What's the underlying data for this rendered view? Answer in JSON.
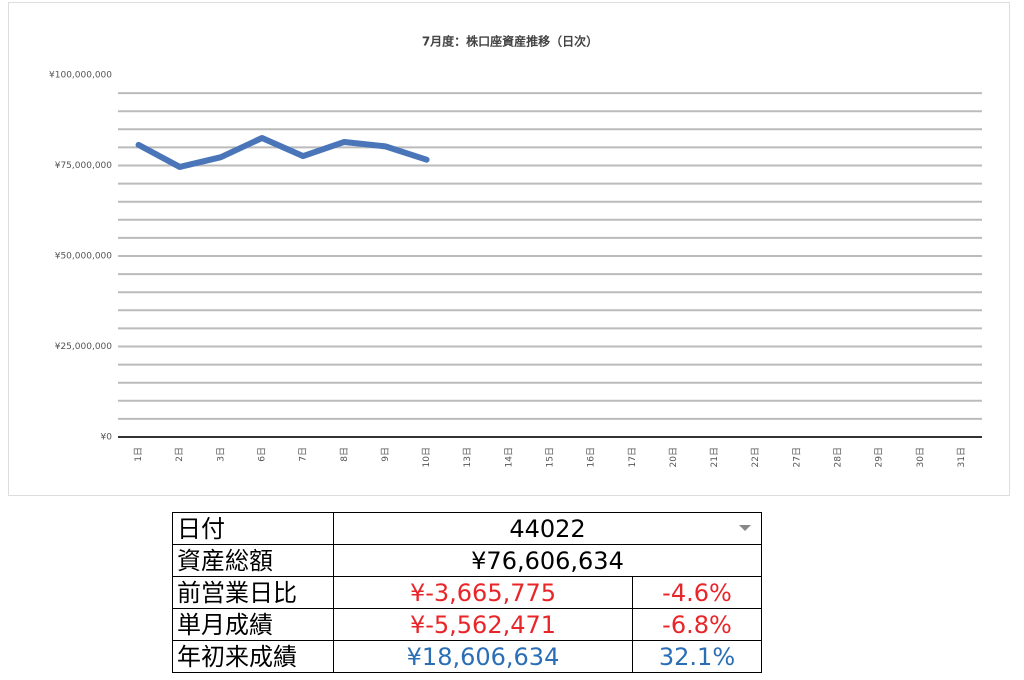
{
  "chart_data": {
    "type": "line",
    "title": "7月度：株口座資産推移（日次）",
    "categories": [
      "1日",
      "2日",
      "3日",
      "6日",
      "7日",
      "8日",
      "9日",
      "10日",
      "13日",
      "14日",
      "15日",
      "16日",
      "17日",
      "20日",
      "21日",
      "22日",
      "27日",
      "28日",
      "29日",
      "30日",
      "31日"
    ],
    "values": [
      80700000,
      74600000,
      77300000,
      82600000,
      77600000,
      81500000,
      80272409,
      76606634,
      null,
      null,
      null,
      null,
      null,
      null,
      null,
      null,
      null,
      null,
      null,
      null,
      null
    ],
    "color": "#4a76b9",
    "ylim": [
      0,
      100000000
    ],
    "yticks": [
      {
        "value": 0,
        "label": "¥0"
      },
      {
        "value": 25000000,
        "label": "¥25,000,000"
      },
      {
        "value": 50000000,
        "label": "¥50,000,000"
      },
      {
        "value": 75000000,
        "label": "¥75,000,000"
      },
      {
        "value": 100000000,
        "label": "¥100,000,000"
      }
    ],
    "minor_yticks": [
      5000000,
      10000000,
      15000000,
      20000000,
      25000000,
      30000000,
      35000000,
      40000000,
      45000000,
      50000000,
      55000000,
      60000000,
      65000000,
      70000000,
      75000000,
      80000000,
      85000000,
      90000000,
      95000000
    ],
    "grid": true
  },
  "table": {
    "rows": [
      [
        "日付",
        "44022"
      ],
      [
        "資産総額",
        "¥76,606,634"
      ],
      [
        "前営業日比",
        "¥-3,665,775",
        "-4.6%"
      ],
      [
        "単月成績",
        "¥-5,562,471",
        "-6.8%"
      ],
      [
        "年初来成績",
        "¥18,606,634",
        "32.1%"
      ]
    ]
  }
}
